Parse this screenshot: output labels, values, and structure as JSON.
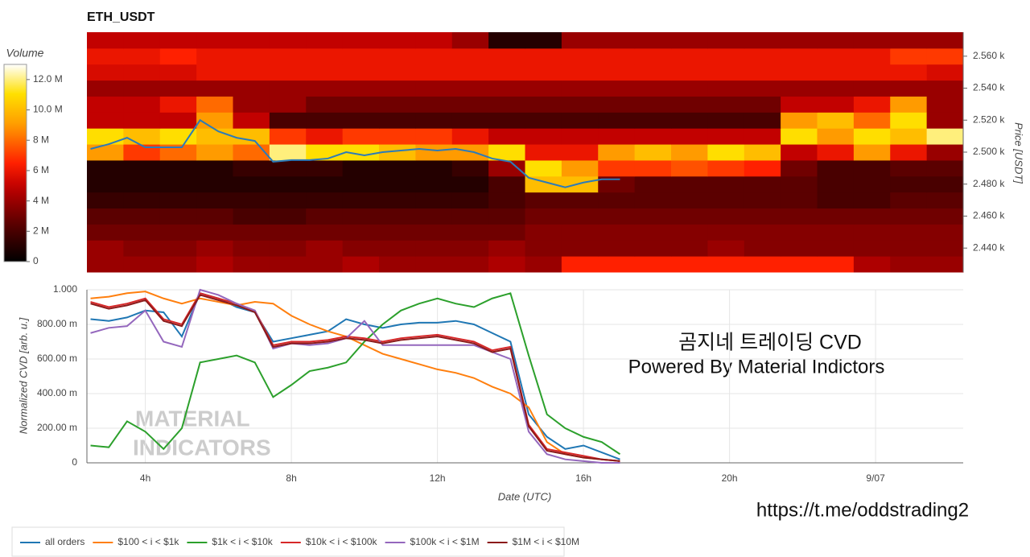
{
  "chart_data": [
    {
      "type": "heatmap",
      "title": "ETH_USDT",
      "ylabel": "Price [USDT]",
      "colorbar_title": "Volume",
      "xlim": [
        2.4,
        26.4
      ],
      "ylim": [
        2.425,
        2.575
      ],
      "x_bins": [
        2.4,
        3.4,
        4.4,
        5.4,
        6.4,
        7.4,
        8.4,
        9.4,
        10.4,
        11.4,
        12.4,
        13.4,
        14.4,
        15.4,
        16.4,
        17.4,
        18.4,
        19.4,
        20.4,
        21.4,
        22.4,
        23.4,
        24.4,
        25.4,
        26.4
      ],
      "y_bins": [
        2.425,
        2.435,
        2.445,
        2.455,
        2.465,
        2.475,
        2.485,
        2.495,
        2.505,
        2.515,
        2.525,
        2.535,
        2.545,
        2.555,
        2.565,
        2.575
      ],
      "yticks": [
        {
          "value": 2.44,
          "label": "2.440 k"
        },
        {
          "value": 2.46,
          "label": "2.460 k"
        },
        {
          "value": 2.48,
          "label": "2.480 k"
        },
        {
          "value": 2.5,
          "label": "2.500 k"
        },
        {
          "value": 2.52,
          "label": "2.520 k"
        },
        {
          "value": 2.54,
          "label": "2.540 k"
        },
        {
          "value": 2.56,
          "label": "2.560 k"
        }
      ],
      "zlim": [
        0,
        13
      ],
      "colorbar_ticks": [
        0,
        {
          "value": 2,
          "label": "2 M"
        },
        {
          "value": 4,
          "label": "4 M"
        },
        {
          "value": 6,
          "label": "6 M"
        },
        {
          "value": 8,
          "label": "8 M"
        },
        {
          "value": 10,
          "label": "10.0 M"
        },
        {
          "value": 12,
          "label": "12.0 M"
        }
      ],
      "values": [
        [
          4,
          4,
          4,
          4.5,
          4,
          4,
          4,
          4.5,
          4,
          4,
          4,
          4.5,
          4,
          6.5,
          6.5,
          6.5,
          6.5,
          6.5,
          6.5,
          6.5,
          6.5,
          4.5,
          4,
          4
        ],
        [
          4,
          3.5,
          3.5,
          4,
          3.5,
          3.5,
          4,
          3.5,
          3.5,
          3.5,
          3.5,
          4,
          3.5,
          3.5,
          3.5,
          3.5,
          3.5,
          4,
          3.5,
          3.5,
          3.5,
          3.5,
          3.5,
          3.5
        ],
        [
          3,
          3,
          3,
          3,
          3,
          3,
          3,
          3,
          3,
          3,
          3,
          3,
          3.5,
          3.5,
          3.5,
          3.5,
          3.5,
          3.5,
          3.5,
          3.5,
          3.5,
          3.5,
          3.5,
          3.5
        ],
        [
          2.5,
          2.5,
          2.5,
          2.5,
          2,
          2,
          2.5,
          2.5,
          2.5,
          2.5,
          2.5,
          2.5,
          3,
          3,
          3,
          3,
          3,
          3,
          3,
          3,
          3,
          3,
          3,
          3
        ],
        [
          1.5,
          1.5,
          1.5,
          1.5,
          1.5,
          1.5,
          1.5,
          1.5,
          1.5,
          1.5,
          1.5,
          2,
          2.5,
          2.5,
          2.5,
          2.5,
          2.5,
          2.5,
          2.5,
          2.5,
          2,
          2,
          2.5,
          2.5
        ],
        [
          1,
          1,
          1,
          1,
          1,
          1,
          1,
          1,
          1,
          1,
          1,
          2,
          10,
          10,
          3,
          2.5,
          2.5,
          2.5,
          2.5,
          2.5,
          2,
          2,
          2,
          2
        ],
        [
          1,
          1,
          1,
          1,
          1.5,
          1.5,
          1.5,
          1,
          1,
          1,
          1.5,
          4,
          11,
          9,
          7,
          7,
          7.5,
          7,
          6.5,
          3,
          2,
          2,
          2.5,
          2.5
        ],
        [
          9,
          7,
          8,
          9,
          8,
          12,
          11,
          11,
          10,
          9,
          9,
          11,
          6,
          6,
          9,
          10,
          9,
          11,
          10,
          5,
          6,
          9,
          6,
          4
        ],
        [
          11,
          10,
          11,
          10,
          10,
          7,
          6,
          7,
          7,
          7,
          6,
          5,
          5,
          5,
          5,
          5,
          5,
          5,
          5,
          11,
          9,
          11,
          10,
          12
        ],
        [
          5,
          5,
          5,
          9,
          5,
          2,
          2,
          2,
          2,
          2,
          2,
          2,
          2,
          2,
          2,
          2,
          2,
          2,
          2,
          9,
          10,
          8,
          11,
          4
        ],
        [
          5,
          5,
          6,
          8,
          4,
          4,
          3,
          3,
          3,
          3,
          3,
          3,
          3,
          3,
          3,
          3,
          3,
          3,
          3,
          5,
          5,
          6,
          9,
          4
        ],
        [
          4,
          4,
          4,
          4,
          4,
          4,
          4,
          4,
          4,
          4,
          4,
          4,
          4,
          4,
          4,
          4,
          4,
          4,
          4,
          4,
          4,
          4,
          4,
          4
        ],
        [
          5.5,
          5.5,
          5.5,
          6,
          6,
          6,
          6,
          6,
          6,
          6,
          6,
          6,
          6,
          6,
          6,
          6,
          6,
          6,
          6,
          6,
          6,
          6,
          6,
          5.5
        ],
        [
          6,
          6,
          6.5,
          6,
          6,
          6,
          6,
          6,
          6,
          6,
          6,
          6,
          6,
          6,
          6,
          6,
          6,
          6,
          6,
          6,
          6,
          6,
          7,
          7
        ],
        [
          5,
          5,
          5,
          5,
          5,
          5,
          5,
          5,
          5,
          5,
          4,
          1,
          1,
          4,
          4,
          4,
          4,
          4,
          4,
          4,
          4,
          4,
          4,
          4
        ]
      ],
      "price_line": {
        "color": "#2b7bb9",
        "x": [
          2.5,
          3,
          3.5,
          4,
          4.5,
          5,
          5.5,
          6,
          6.5,
          7,
          7.5,
          8,
          8.5,
          9,
          9.5,
          10,
          10.5,
          11,
          11.5,
          12,
          12.5,
          13,
          13.5,
          14,
          14.5,
          15,
          15.5,
          16,
          16.5,
          17
        ],
        "values": [
          2.502,
          2.505,
          2.509,
          2.503,
          2.503,
          2.503,
          2.52,
          2.513,
          2.509,
          2.507,
          2.494,
          2.495,
          2.495,
          2.496,
          2.5,
          2.498,
          2.5,
          2.501,
          2.502,
          2.501,
          2.502,
          2.5,
          2.496,
          2.494,
          2.484,
          2.481,
          2.478,
          2.481,
          2.483,
          2.483
        ]
      }
    },
    {
      "type": "line",
      "xlabel": "Date (UTC)",
      "ylabel": "Normalized CVD [arb. u.]",
      "grid": true,
      "xlim": [
        2.4,
        26.4
      ],
      "ylim": [
        0,
        1
      ],
      "xticks": [
        {
          "value": 4,
          "label": "4h"
        },
        {
          "value": 8,
          "label": "8h"
        },
        {
          "value": 12,
          "label": "12h"
        },
        {
          "value": 16,
          "label": "16h"
        },
        {
          "value": 20,
          "label": "20h"
        },
        {
          "value": 24,
          "label": "9/07"
        }
      ],
      "yticks": [
        0,
        {
          "value": 0.2,
          "label": "200.00 m"
        },
        {
          "value": 0.4,
          "label": "400.00 m"
        },
        {
          "value": 0.6,
          "label": "600.00 m"
        },
        {
          "value": 0.8,
          "label": "800.00 m"
        },
        {
          "value": 1,
          "label": "1.000"
        }
      ],
      "x": [
        2.5,
        3,
        3.5,
        4,
        4.5,
        5,
        5.5,
        6,
        6.5,
        7,
        7.5,
        8,
        8.5,
        9,
        9.5,
        10,
        10.5,
        11,
        11.5,
        12,
        12.5,
        13,
        13.5,
        14,
        14.5,
        15,
        15.5,
        16,
        16.5,
        17
      ],
      "series": [
        {
          "name": "all orders",
          "color": "#1f77b4",
          "values": [
            0.83,
            0.82,
            0.84,
            0.88,
            0.87,
            0.73,
            0.98,
            0.95,
            0.9,
            0.87,
            0.7,
            0.72,
            0.74,
            0.76,
            0.83,
            0.8,
            0.78,
            0.8,
            0.81,
            0.81,
            0.82,
            0.8,
            0.75,
            0.7,
            0.28,
            0.15,
            0.08,
            0.1,
            0.06,
            0.02
          ]
        },
        {
          "name": "$100 < i < $1k",
          "color": "#ff7f0e",
          "values": [
            0.95,
            0.96,
            0.98,
            0.99,
            0.95,
            0.92,
            0.95,
            0.93,
            0.91,
            0.93,
            0.92,
            0.85,
            0.8,
            0.76,
            0.73,
            0.68,
            0.63,
            0.6,
            0.57,
            0.54,
            0.52,
            0.49,
            0.44,
            0.4,
            0.32,
            0.12,
            0.05,
            0.03,
            0.02,
            0.01
          ]
        },
        {
          "name": "$1k < i < $10k",
          "color": "#2ca02c",
          "values": [
            0.1,
            0.09,
            0.24,
            0.18,
            0.08,
            0.2,
            0.58,
            0.6,
            0.62,
            0.58,
            0.38,
            0.45,
            0.53,
            0.55,
            0.58,
            0.7,
            0.8,
            0.88,
            0.92,
            0.95,
            0.92,
            0.9,
            0.95,
            0.98,
            0.62,
            0.28,
            0.2,
            0.15,
            0.12,
            0.05
          ]
        },
        {
          "name": "$10k < i < $100k",
          "color": "#d62728",
          "values": [
            0.93,
            0.9,
            0.92,
            0.95,
            0.83,
            0.8,
            0.98,
            0.95,
            0.92,
            0.88,
            0.68,
            0.7,
            0.7,
            0.71,
            0.73,
            0.72,
            0.7,
            0.72,
            0.73,
            0.74,
            0.72,
            0.7,
            0.65,
            0.67,
            0.22,
            0.08,
            0.06,
            0.04,
            0.02,
            0.01
          ]
        },
        {
          "name": "$100k < i < $1M",
          "color": "#9467bd",
          "values": [
            0.75,
            0.78,
            0.79,
            0.88,
            0.7,
            0.67,
            1.0,
            0.97,
            0.92,
            0.88,
            0.66,
            0.69,
            0.68,
            0.69,
            0.72,
            0.82,
            0.68,
            0.68,
            0.68,
            0.68,
            0.68,
            0.68,
            0.64,
            0.6,
            0.18,
            0.05,
            0.02,
            0.01,
            0,
            0
          ]
        },
        {
          "name": "$1M < i < $10M",
          "color": "#8b1a1a",
          "values": [
            0.92,
            0.89,
            0.91,
            0.94,
            0.82,
            0.79,
            0.97,
            0.94,
            0.91,
            0.87,
            0.67,
            0.69,
            0.69,
            0.7,
            0.72,
            0.71,
            0.69,
            0.71,
            0.72,
            0.73,
            0.71,
            0.69,
            0.64,
            0.66,
            0.21,
            0.07,
            0.05,
            0.03,
            0.02,
            0.01
          ]
        }
      ],
      "annotations": [
        "곰지네 트레이딩 CVD",
        "Powered By Material Indictors",
        "https://t.me/oddstrading2"
      ],
      "watermark": [
        "MATERIAL",
        "INDICATORS"
      ]
    }
  ]
}
